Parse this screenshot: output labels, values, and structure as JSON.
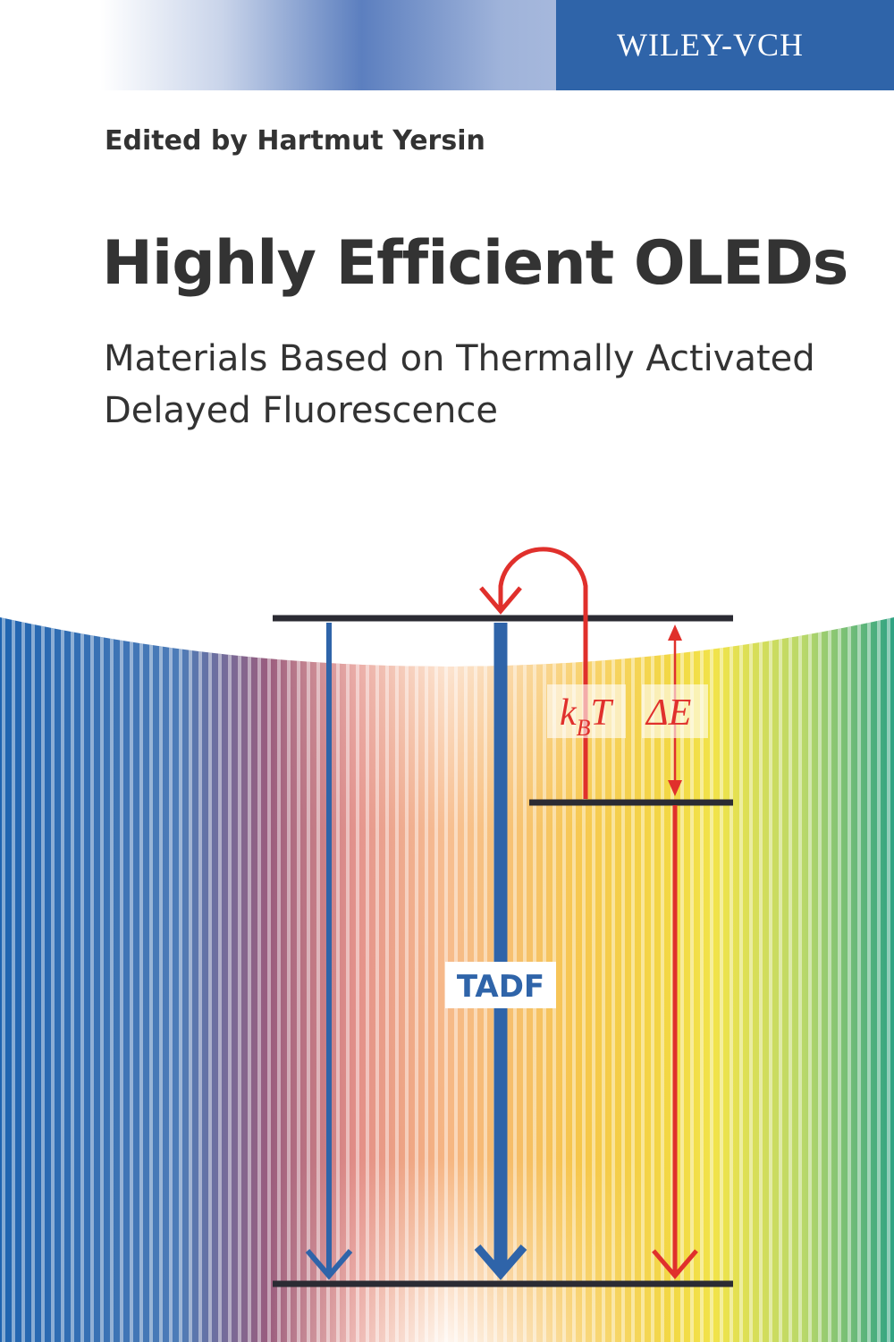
{
  "publisher": "WILEY-VCH",
  "editor": "Edited by Hartmut Yersin",
  "title": "Highly Efficient OLEDs",
  "subtitle_lines": [
    "Materials Based on Thermally Activated",
    "Delayed Fluorescence"
  ],
  "diagram": {
    "thermal_label": {
      "base": "k",
      "subscript": "B",
      "after": "T"
    },
    "gap_label": "ΔE",
    "emission_label": "TADF"
  }
}
